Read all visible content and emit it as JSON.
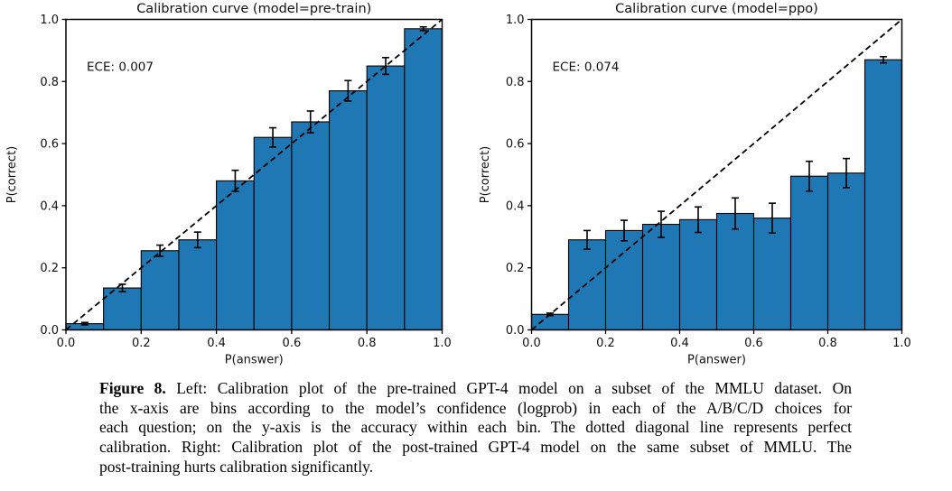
{
  "page": {
    "background": "#ffffff"
  },
  "chart_data": [
    {
      "type": "bar",
      "panel": "left",
      "title": "Calibration curve (model=pre-train)",
      "annotation": "ECE: 0.007",
      "xlabel": "P(answer)",
      "ylabel": "P(correct)",
      "xlim": [
        0.0,
        1.0
      ],
      "ylim": [
        0.0,
        1.0
      ],
      "xticks": [
        "0.0",
        "0.2",
        "0.4",
        "0.6",
        "0.8",
        "1.0"
      ],
      "yticks": [
        "0.0",
        "0.2",
        "0.4",
        "0.6",
        "0.8",
        "1.0"
      ],
      "bin_edges": [
        0.0,
        0.1,
        0.2,
        0.3,
        0.4,
        0.5,
        0.6,
        0.7,
        0.8,
        0.9,
        1.0
      ],
      "values": [
        0.02,
        0.135,
        0.255,
        0.29,
        0.48,
        0.62,
        0.67,
        0.77,
        0.85,
        0.97
      ],
      "errors": [
        0.004,
        0.012,
        0.018,
        0.025,
        0.034,
        0.031,
        0.035,
        0.033,
        0.027,
        0.006
      ],
      "diagonal_line": "dashed y=x perfect calibration line",
      "bar_color": "#1f77b4",
      "bar_edge_color": "#000000",
      "grid": false,
      "legend": null
    },
    {
      "type": "bar",
      "panel": "right",
      "title": "Calibration curve (model=ppo)",
      "annotation": "ECE: 0.074",
      "xlabel": "P(answer)",
      "ylabel": "P(correct)",
      "xlim": [
        0.0,
        1.0
      ],
      "ylim": [
        0.0,
        1.0
      ],
      "xticks": [
        "0.0",
        "0.2",
        "0.4",
        "0.6",
        "0.8",
        "1.0"
      ],
      "yticks": [
        "0.0",
        "0.2",
        "0.4",
        "0.6",
        "0.8",
        "1.0"
      ],
      "bin_edges": [
        0.0,
        0.1,
        0.2,
        0.3,
        0.4,
        0.5,
        0.6,
        0.7,
        0.8,
        0.9,
        1.0
      ],
      "values": [
        0.05,
        0.29,
        0.32,
        0.34,
        0.355,
        0.375,
        0.36,
        0.495,
        0.505,
        0.87
      ],
      "errors": [
        0.004,
        0.03,
        0.033,
        0.042,
        0.041,
        0.05,
        0.048,
        0.048,
        0.047,
        0.01
      ],
      "diagonal_line": "dashed y=x perfect calibration line",
      "bar_color": "#1f77b4",
      "bar_edge_color": "#000000",
      "grid": false,
      "legend": null
    }
  ],
  "caption": {
    "label": "Figure 8.",
    "lines": [
      "Left: Calibration plot of the pre-trained GPT-4 model on a subset of the MMLU dataset. On",
      "the x-axis are bins according to the model’s confidence (logprob) in each of the A/B/C/D choices for",
      "each question; on the y-axis is the accuracy within each bin. The dotted diagonal line represents perfect",
      "calibration. Right: Calibration plot of the post-trained GPT-4 model on the same subset of MMLU. The",
      "post-training hurts calibration significantly."
    ]
  }
}
